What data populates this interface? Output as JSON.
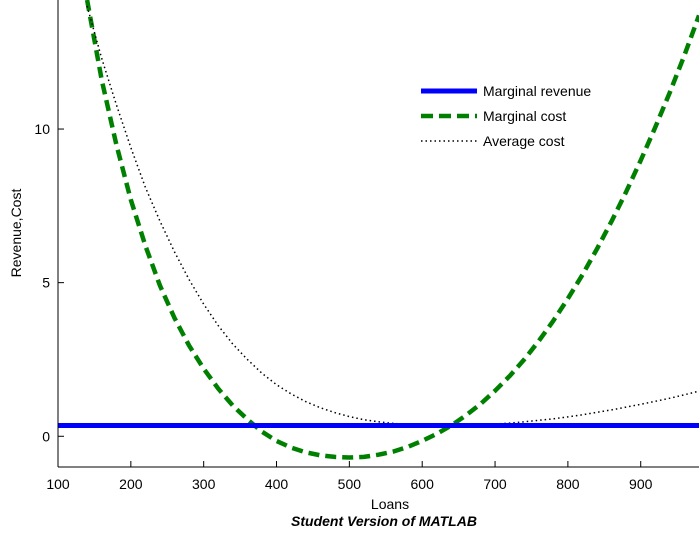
{
  "chart_data": {
    "type": "line",
    "xlabel": "Loans",
    "ylabel": "Revenue,Cost",
    "xlim": [
      100,
      980
    ],
    "ylim": [
      -1,
      14.2
    ],
    "xticks": [
      100,
      200,
      300,
      400,
      500,
      600,
      700,
      800,
      900
    ],
    "yticks": [
      0,
      5,
      10
    ],
    "grid": false,
    "legend_position": "top-right",
    "series": [
      {
        "name": "Marginal revenue",
        "color": "#0000ff",
        "style": "solid",
        "x": [
          100,
          980
        ],
        "y": [
          0.35,
          0.35
        ]
      },
      {
        "name": "Marginal cost",
        "color": "#008000",
        "style": "dashed",
        "x": [
          140,
          160,
          180,
          200,
          220,
          240,
          260,
          280,
          300,
          320,
          340,
          360,
          380,
          400,
          420,
          440,
          460,
          480,
          500,
          520,
          540,
          560,
          580,
          600,
          620,
          640,
          660,
          680,
          700,
          720,
          740,
          760,
          780,
          800,
          820,
          840,
          860,
          880,
          900,
          920,
          940,
          960,
          980
        ],
        "y": [
          14.2,
          11.6,
          9.5,
          7.7,
          6.2,
          4.9,
          3.85,
          2.95,
          2.2,
          1.55,
          1.0,
          0.55,
          0.15,
          -0.15,
          -0.37,
          -0.52,
          -0.62,
          -0.67,
          -0.69,
          -0.67,
          -0.6,
          -0.5,
          -0.35,
          -0.15,
          0.08,
          0.35,
          0.68,
          1.05,
          1.48,
          1.96,
          2.5,
          3.1,
          3.76,
          4.48,
          5.26,
          6.1,
          7.0,
          7.96,
          8.98,
          10.06,
          11.2,
          12.4,
          13.7
        ]
      },
      {
        "name": "Average cost",
        "color": "#000000",
        "style": "dotted",
        "x": [
          140,
          160,
          180,
          200,
          220,
          240,
          260,
          280,
          300,
          320,
          340,
          360,
          380,
          400,
          420,
          440,
          460,
          480,
          500,
          520,
          540,
          560,
          580,
          600,
          620,
          640,
          660,
          680,
          700,
          720,
          740,
          760,
          780,
          800,
          820,
          840,
          860,
          880,
          900,
          920,
          940,
          960,
          980
        ],
        "y": [
          14.0,
          12.3,
          10.8,
          9.4,
          8.1,
          7.0,
          6.0,
          5.1,
          4.3,
          3.6,
          3.0,
          2.5,
          2.05,
          1.68,
          1.38,
          1.13,
          0.93,
          0.77,
          0.64,
          0.54,
          0.47,
          0.42,
          0.38,
          0.36,
          0.35,
          0.35,
          0.36,
          0.38,
          0.4,
          0.43,
          0.47,
          0.52,
          0.57,
          0.63,
          0.7,
          0.78,
          0.86,
          0.95,
          1.04,
          1.14,
          1.24,
          1.35,
          1.47
        ]
      }
    ]
  },
  "watermark": "Student Version of MATLAB"
}
